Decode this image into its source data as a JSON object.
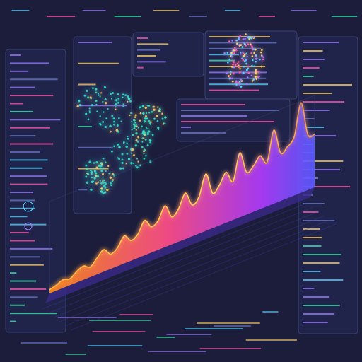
{
  "chart_data": {
    "type": "area",
    "ylim": [
      0,
      100
    ],
    "values": [
      4,
      6,
      9,
      7,
      12,
      15,
      11,
      18,
      24,
      16,
      20,
      30,
      22,
      26,
      38,
      28,
      32,
      45,
      30,
      36,
      50,
      34,
      40,
      62,
      38,
      44,
      55,
      42,
      70,
      46,
      50,
      58,
      48,
      80,
      52,
      56,
      64,
      98,
      60,
      58
    ],
    "color": "#ff4f8b",
    "grid": false,
    "tick_labels": false
  }
}
